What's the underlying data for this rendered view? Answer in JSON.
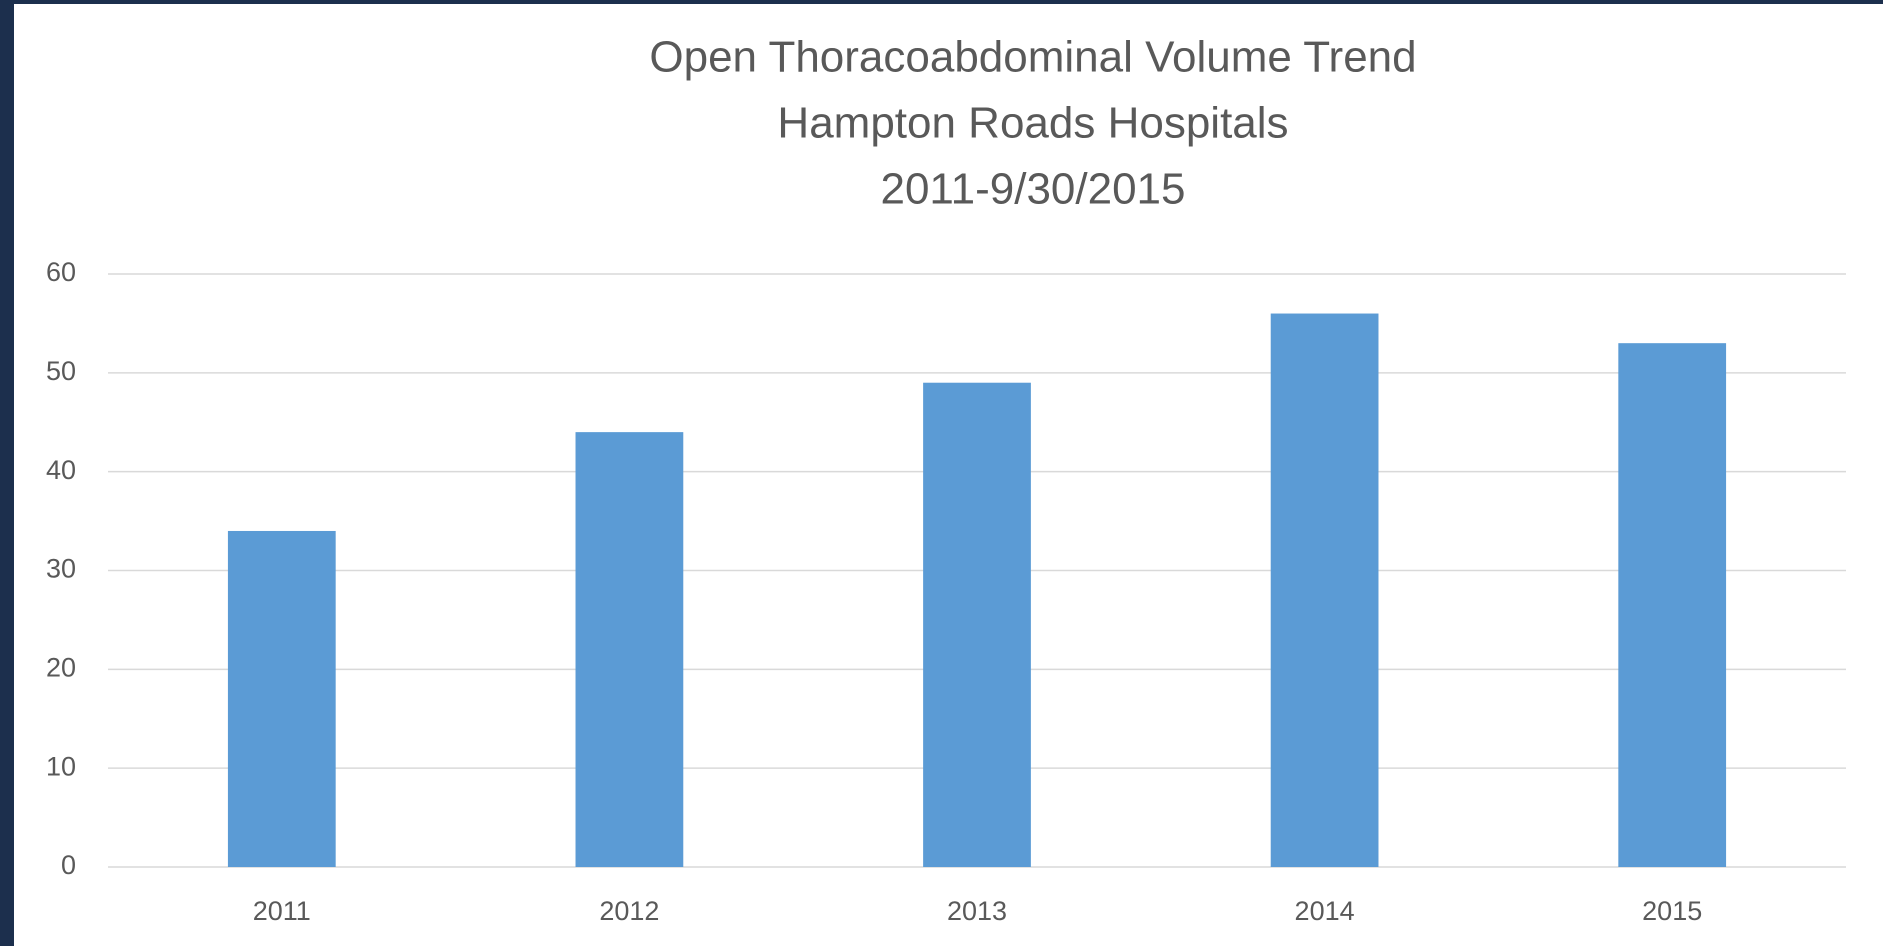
{
  "chart_data": {
    "type": "bar",
    "title": [
      "Open Thoracoabdominal Volume Trend",
      "Hampton Roads Hospitals",
      "2011-9/30/2015"
    ],
    "categories": [
      "2011",
      "2012",
      "2013",
      "2014",
      "2015"
    ],
    "values": [
      34,
      44,
      49,
      56,
      53
    ],
    "color": "#5b9bd5",
    "ylim": [
      0,
      60
    ],
    "yticks": [
      0,
      10,
      20,
      30,
      40,
      50,
      60
    ],
    "grid": true
  }
}
